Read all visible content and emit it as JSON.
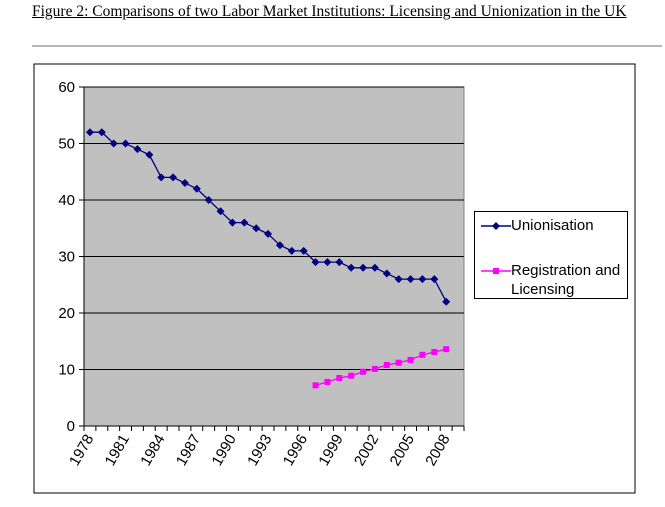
{
  "caption": "Figure 2: Comparisons of two Labor Market Institutions: Licensing and Unionization in the UK",
  "chart_data": {
    "type": "line",
    "xlabel": "",
    "ylabel": "",
    "ylim": [
      0,
      60
    ],
    "yticks": [
      0,
      10,
      20,
      30,
      40,
      50,
      60
    ],
    "x_tick_labels": [
      "1978",
      "1981",
      "1984",
      "1987",
      "1990",
      "1993",
      "1996",
      "1999",
      "2002",
      "2005",
      "2008"
    ],
    "xlim": [
      1978,
      2009
    ],
    "grid": "horizontal",
    "legend_position": "right",
    "series": [
      {
        "name": "Unionisation",
        "color": "#000080",
        "marker": "diamond",
        "x": [
          1978,
          1979,
          1980,
          1981,
          1982,
          1983,
          1984,
          1985,
          1986,
          1987,
          1988,
          1989,
          1990,
          1991,
          1992,
          1993,
          1994,
          1995,
          1996,
          1997,
          1998,
          1999,
          2000,
          2001,
          2002,
          2003,
          2004,
          2005,
          2006,
          2007,
          2008
        ],
        "values": [
          52,
          52,
          50,
          50,
          49,
          48,
          44,
          44,
          43,
          42,
          40,
          38,
          36,
          36,
          35,
          34,
          32,
          31,
          31,
          29,
          29,
          29,
          28,
          28,
          28,
          27,
          26,
          26,
          26,
          26,
          22
        ]
      },
      {
        "name": "Registration and Licensing",
        "color": "#ff00ff",
        "marker": "square",
        "x": [
          1997,
          1998,
          1999,
          2000,
          2001,
          2002,
          2003,
          2004,
          2005,
          2006,
          2007,
          2008
        ],
        "values": [
          7.2,
          7.8,
          8.5,
          8.9,
          9.6,
          10.1,
          10.8,
          11.2,
          11.7,
          12.6,
          13.1,
          13.6
        ]
      }
    ]
  }
}
